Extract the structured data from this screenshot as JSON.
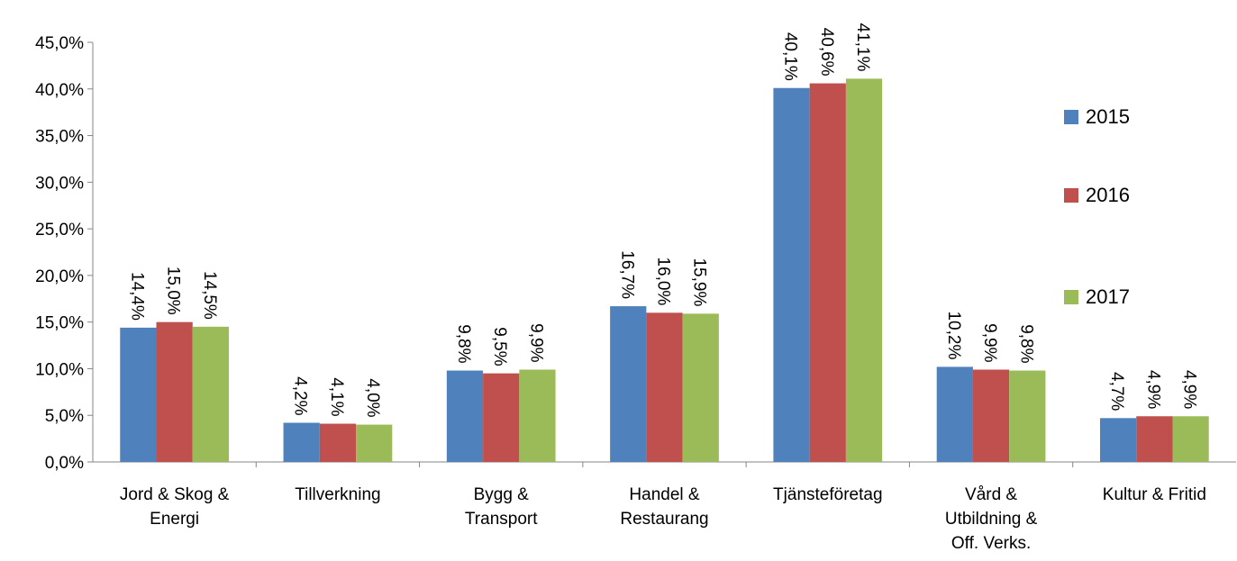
{
  "chart_data": {
    "type": "bar",
    "categories": [
      "Jord & Skog &\nEnergi",
      "Tillverkning",
      "Bygg &\nTransport",
      "Handel &\nRestaurang",
      "Tjänsteföretag",
      "Vård &\nUtbildning &\nOff. Verks.",
      "Kultur & Fritid"
    ],
    "series": [
      {
        "name": "2015",
        "color": "#4f81bd",
        "values": [
          14.4,
          4.2,
          9.8,
          16.7,
          40.1,
          10.2,
          4.7
        ],
        "value_labels": [
          "14,4%",
          "4,2%",
          "9,8%",
          "16,7%",
          "40,1%",
          "10,2%",
          "4,7%"
        ]
      },
      {
        "name": "2016",
        "color": "#c0504d",
        "values": [
          15.0,
          4.1,
          9.5,
          16.0,
          40.6,
          9.9,
          4.9
        ],
        "value_labels": [
          "15,0%",
          "4,1%",
          "9,5%",
          "16,0%",
          "40,6%",
          "9,9%",
          "4,9%"
        ]
      },
      {
        "name": "2017",
        "color": "#9bbb59",
        "values": [
          14.5,
          4.0,
          9.9,
          15.9,
          41.1,
          9.8,
          4.9
        ],
        "value_labels": [
          "14,5%",
          "4,0%",
          "9,9%",
          "15,9%",
          "41,1%",
          "9,8%",
          "4,9%"
        ]
      }
    ],
    "ylim": [
      0,
      45
    ],
    "yticks": [
      {
        "value": 0,
        "label": "0,0%"
      },
      {
        "value": 5,
        "label": "5,0%"
      },
      {
        "value": 10,
        "label": "10,0%"
      },
      {
        "value": 15,
        "label": "15,0%"
      },
      {
        "value": 20,
        "label": "20,0%"
      },
      {
        "value": 25,
        "label": "25,0%"
      },
      {
        "value": 30,
        "label": "30,0%"
      },
      {
        "value": 35,
        "label": "35,0%"
      },
      {
        "value": 40,
        "label": "40,0%"
      },
      {
        "value": 45,
        "label": "45,0%"
      }
    ],
    "grid": false,
    "legend": "right"
  }
}
